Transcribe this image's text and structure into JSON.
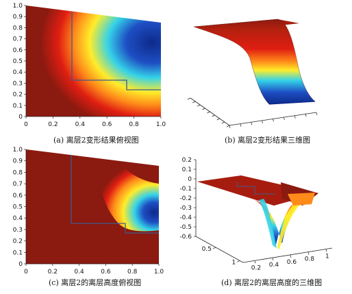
{
  "panels": [
    {
      "caption": "(a) 离层2变形结果俯视图",
      "chart_data": {
        "type": "heatmap",
        "view": "top",
        "xlim": [
          0,
          1.0
        ],
        "ylim": [
          0,
          1.0
        ],
        "xticks": [
          "0",
          "0.2",
          "0.4",
          "0.6",
          "0.8",
          "1.0"
        ],
        "yticks": [
          "0",
          "0.1",
          "0.2",
          "0.3",
          "0.4",
          "0.5",
          "0.6",
          "0.7",
          "0.8",
          "0.9",
          "1.0"
        ],
        "colormap": "jet",
        "description_values": {
          "low_region_center": [
            0.9,
            0.72
          ],
          "outline_polygon": [
            [
              0.34,
              1.0
            ],
            [
              0.34,
              0.33
            ],
            [
              0.74,
              0.33
            ],
            [
              0.74,
              0.25
            ],
            [
              1.0,
              0.25
            ]
          ]
        }
      }
    },
    {
      "caption": "(b) 离层2变形结果三维图",
      "chart_data": {
        "type": "surface3d",
        "colormap": "jet",
        "axes_labels_visible": false
      }
    },
    {
      "caption": "(c) 离层2的离层高度俯视图",
      "chart_data": {
        "type": "heatmap",
        "view": "top",
        "xlim": [
          0,
          1.0
        ],
        "ylim": [
          0,
          1.0
        ],
        "xticks": [
          "0",
          "0.2",
          "0.4",
          "0.6",
          "0.8",
          "1.0"
        ],
        "yticks": [
          "0",
          "0.1",
          "0.2",
          "0.3",
          "0.4",
          "0.5",
          "0.6",
          "0.7",
          "0.8",
          "0.9",
          "1.0"
        ],
        "colormap": "jet",
        "description_values": {
          "low_region_center": [
            0.9,
            0.46
          ],
          "outline_polygon": [
            [
              0.34,
              1.0
            ],
            [
              0.34,
              0.33
            ],
            [
              0.74,
              0.33
            ],
            [
              0.74,
              0.25
            ],
            [
              1.0,
              0.25
            ]
          ]
        }
      }
    },
    {
      "caption": "(d) 离层2的离层高度的三维图",
      "chart_data": {
        "type": "surface3d",
        "colormap": "jet",
        "zlim": [
          -0.6,
          0.2
        ],
        "zticks": [
          "0.2",
          "0.1",
          "0",
          "-0.1",
          "-0.2",
          "-0.3",
          "-0.4",
          "-0.5",
          "-0.6"
        ],
        "xticks": [
          "0.2",
          "0.4",
          "0.6",
          "0.8",
          "1"
        ],
        "yticks": [
          "1",
          "0.5"
        ],
        "min_value": -0.55
      }
    }
  ],
  "colors": {
    "dark_red": "#8b1a10",
    "red": "#e01e12",
    "orange": "#ff8c1a",
    "yellow": "#ffec2a",
    "cyan": "#35d3e8",
    "blue": "#1e4fc4",
    "dark_blue": "#0d2a8a",
    "outline": "#3f5a8e"
  }
}
